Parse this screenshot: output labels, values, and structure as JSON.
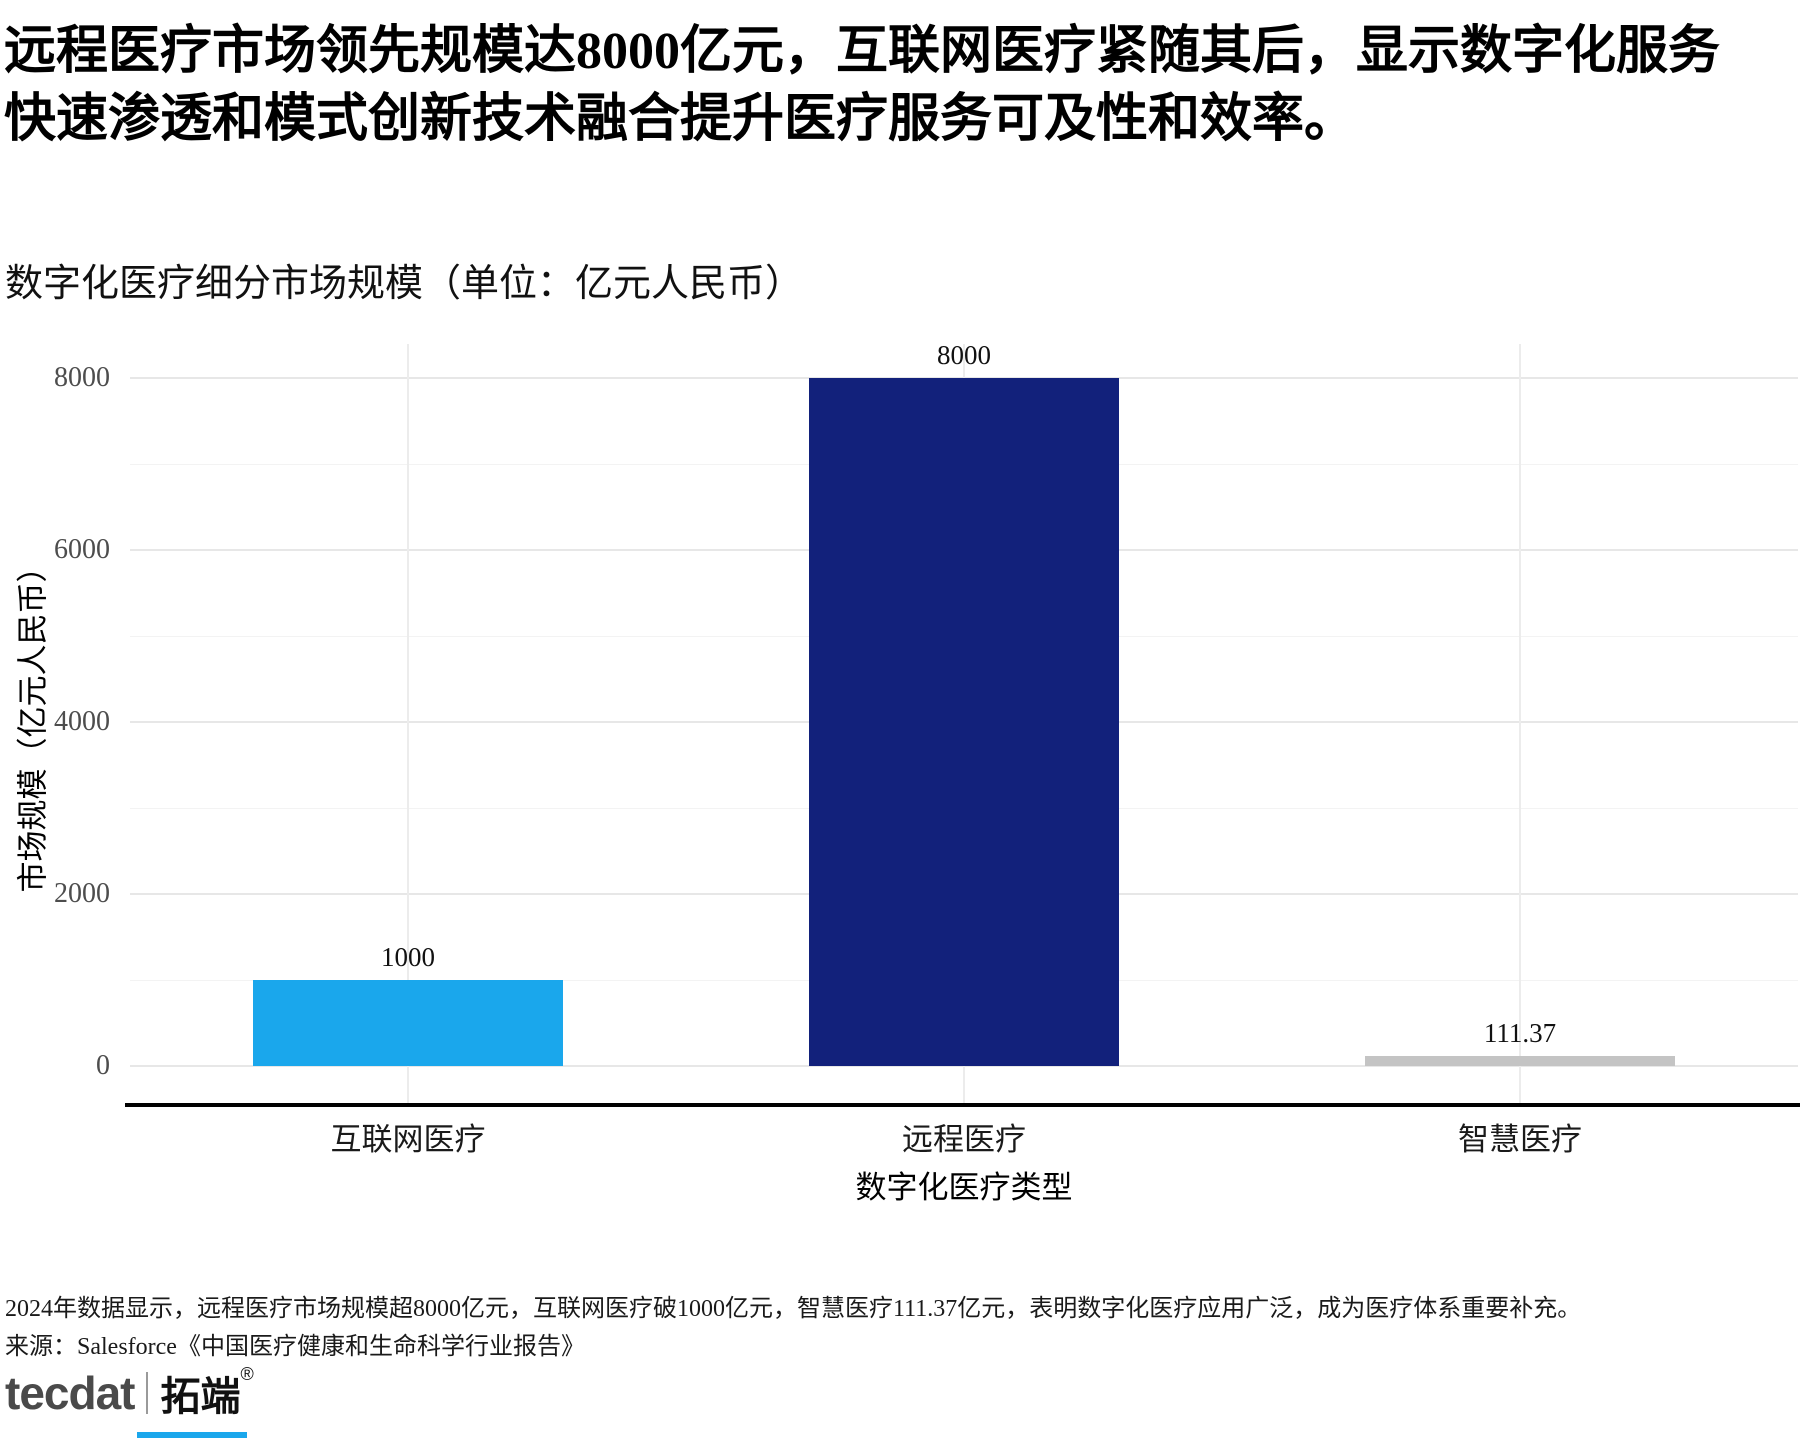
{
  "header": {
    "title_line1": "远程医疗市场领先规模达8000亿元，互联网医疗紧随其后，显示数字化服务",
    "title_line2": "快速渗透和模式创新技术融合提升医疗服务可及性和效率。",
    "subtitle": "数字化医疗细分市场规模（单位：亿元人民币）"
  },
  "chart_data": {
    "type": "bar",
    "title": "数字化医疗细分市场规模（单位：亿元人民币）",
    "categories": [
      "互联网医疗",
      "远程医疗",
      "智慧医疗"
    ],
    "values": [
      1000,
      8000,
      111.37
    ],
    "value_labels": [
      "1000",
      "8000",
      "111.37"
    ],
    "bar_colors": [
      "#1aa7ec",
      "#12217b",
      "#c4c4c4"
    ],
    "xlabel": "数字化医疗类型",
    "ylabel": "市场规模（亿元人民币）",
    "ylim": [
      0,
      8000
    ],
    "yticks": [
      0,
      2000,
      4000,
      6000,
      8000
    ],
    "ytick_labels": [
      "0",
      "2000",
      "4000",
      "6000",
      "8000"
    ],
    "grid": true,
    "legend": false
  },
  "footer": {
    "note": "2024年数据显示，远程医疗市场规模超8000亿元，互联网医疗破1000亿元，智慧医疗111.37亿元，表明数字化医疗应用广泛，成为医疗体系重要补充。",
    "source": "来源：Salesforce《中国医疗健康和生命科学行业报告》"
  },
  "branding": {
    "logo_text": "tecdat",
    "logo_suffix": "拓端",
    "registered_mark": "®",
    "accent_color": "#1aa7ec"
  }
}
